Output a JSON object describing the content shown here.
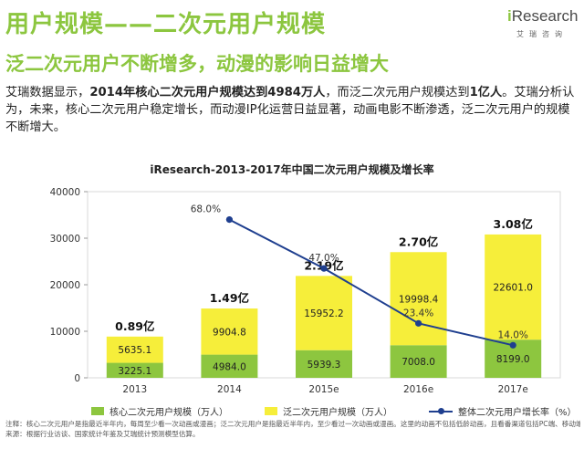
{
  "header": {
    "title": "用户规模——二次元用户规模",
    "subtitle": "泛二次元用户不断增多，动漫的影响日益增大"
  },
  "logo": {
    "brand_i": "i",
    "brand_rest": "Research",
    "brand_cn": "艾瑞咨询"
  },
  "intro": {
    "p1": "艾瑞数据显示，",
    "p2": "2014年核心二次元用户规模达到4984万人",
    "p3": "，而泛二次元用户规模达到",
    "p4": "1亿人",
    "p5": "。艾瑞分析认为，未来，核心二次元用户稳定增长，而动漫IP化运营日益显著，动画电影不断渗透，泛二次元用户的规模不断增大。"
  },
  "chart_data": {
    "type": "bar",
    "title": "iResearch-2013-2017年中国二次元用户规模及增长率",
    "categories": [
      "2013",
      "2014",
      "2015e",
      "2016e",
      "2017e"
    ],
    "series": [
      {
        "name": "核心二次元用户规模（万人）",
        "values": [
          3225.1,
          4984.0,
          5939.3,
          7008.0,
          8199.0
        ],
        "labels": [
          "3225.1",
          "4984.0",
          "5939.3",
          "7008.0",
          "8199.0"
        ],
        "color": "#8dc63f"
      },
      {
        "name": "泛二次元用户规模（万人）",
        "values": [
          5635.1,
          9904.8,
          15952.2,
          19998.4,
          22601.0
        ],
        "labels": [
          "5635.1",
          "9904.8",
          "15952.2",
          "19998.4",
          "22601.0"
        ],
        "color": "#f6ee3a"
      },
      {
        "name": "整体二次元用户增长率（%）",
        "values": [
          68.0,
          47.0,
          23.4,
          14.0
        ],
        "labels": [
          "68.0%",
          "47.0%",
          "23.4%",
          "14.0%"
        ],
        "x": [
          "2014",
          "2015e",
          "2016e",
          "2017e"
        ],
        "color": "#1f3f8f"
      }
    ],
    "totals": [
      "0.89亿",
      "1.49亿",
      "2.19亿",
      "2.70亿",
      "3.08亿"
    ],
    "yticks": [
      "0",
      "10000",
      "20000",
      "30000",
      "40000"
    ],
    "ylim": [
      0,
      40000
    ],
    "rate_lim": [
      0,
      80
    ]
  },
  "footnote": {
    "line1": "注释：核心二次元用户是指最近半年内，每周至少看一次动画或漫画；泛二次元用户是指最近半年内，至少看过一次动画或漫画。这里的动画不包括低龄动画，且看番渠道包括PC端、移动端、电影院或电视。",
    "line2": "来源：根据行业访谈、国家统计年鉴及艾瑞统计预测模型估算。"
  }
}
